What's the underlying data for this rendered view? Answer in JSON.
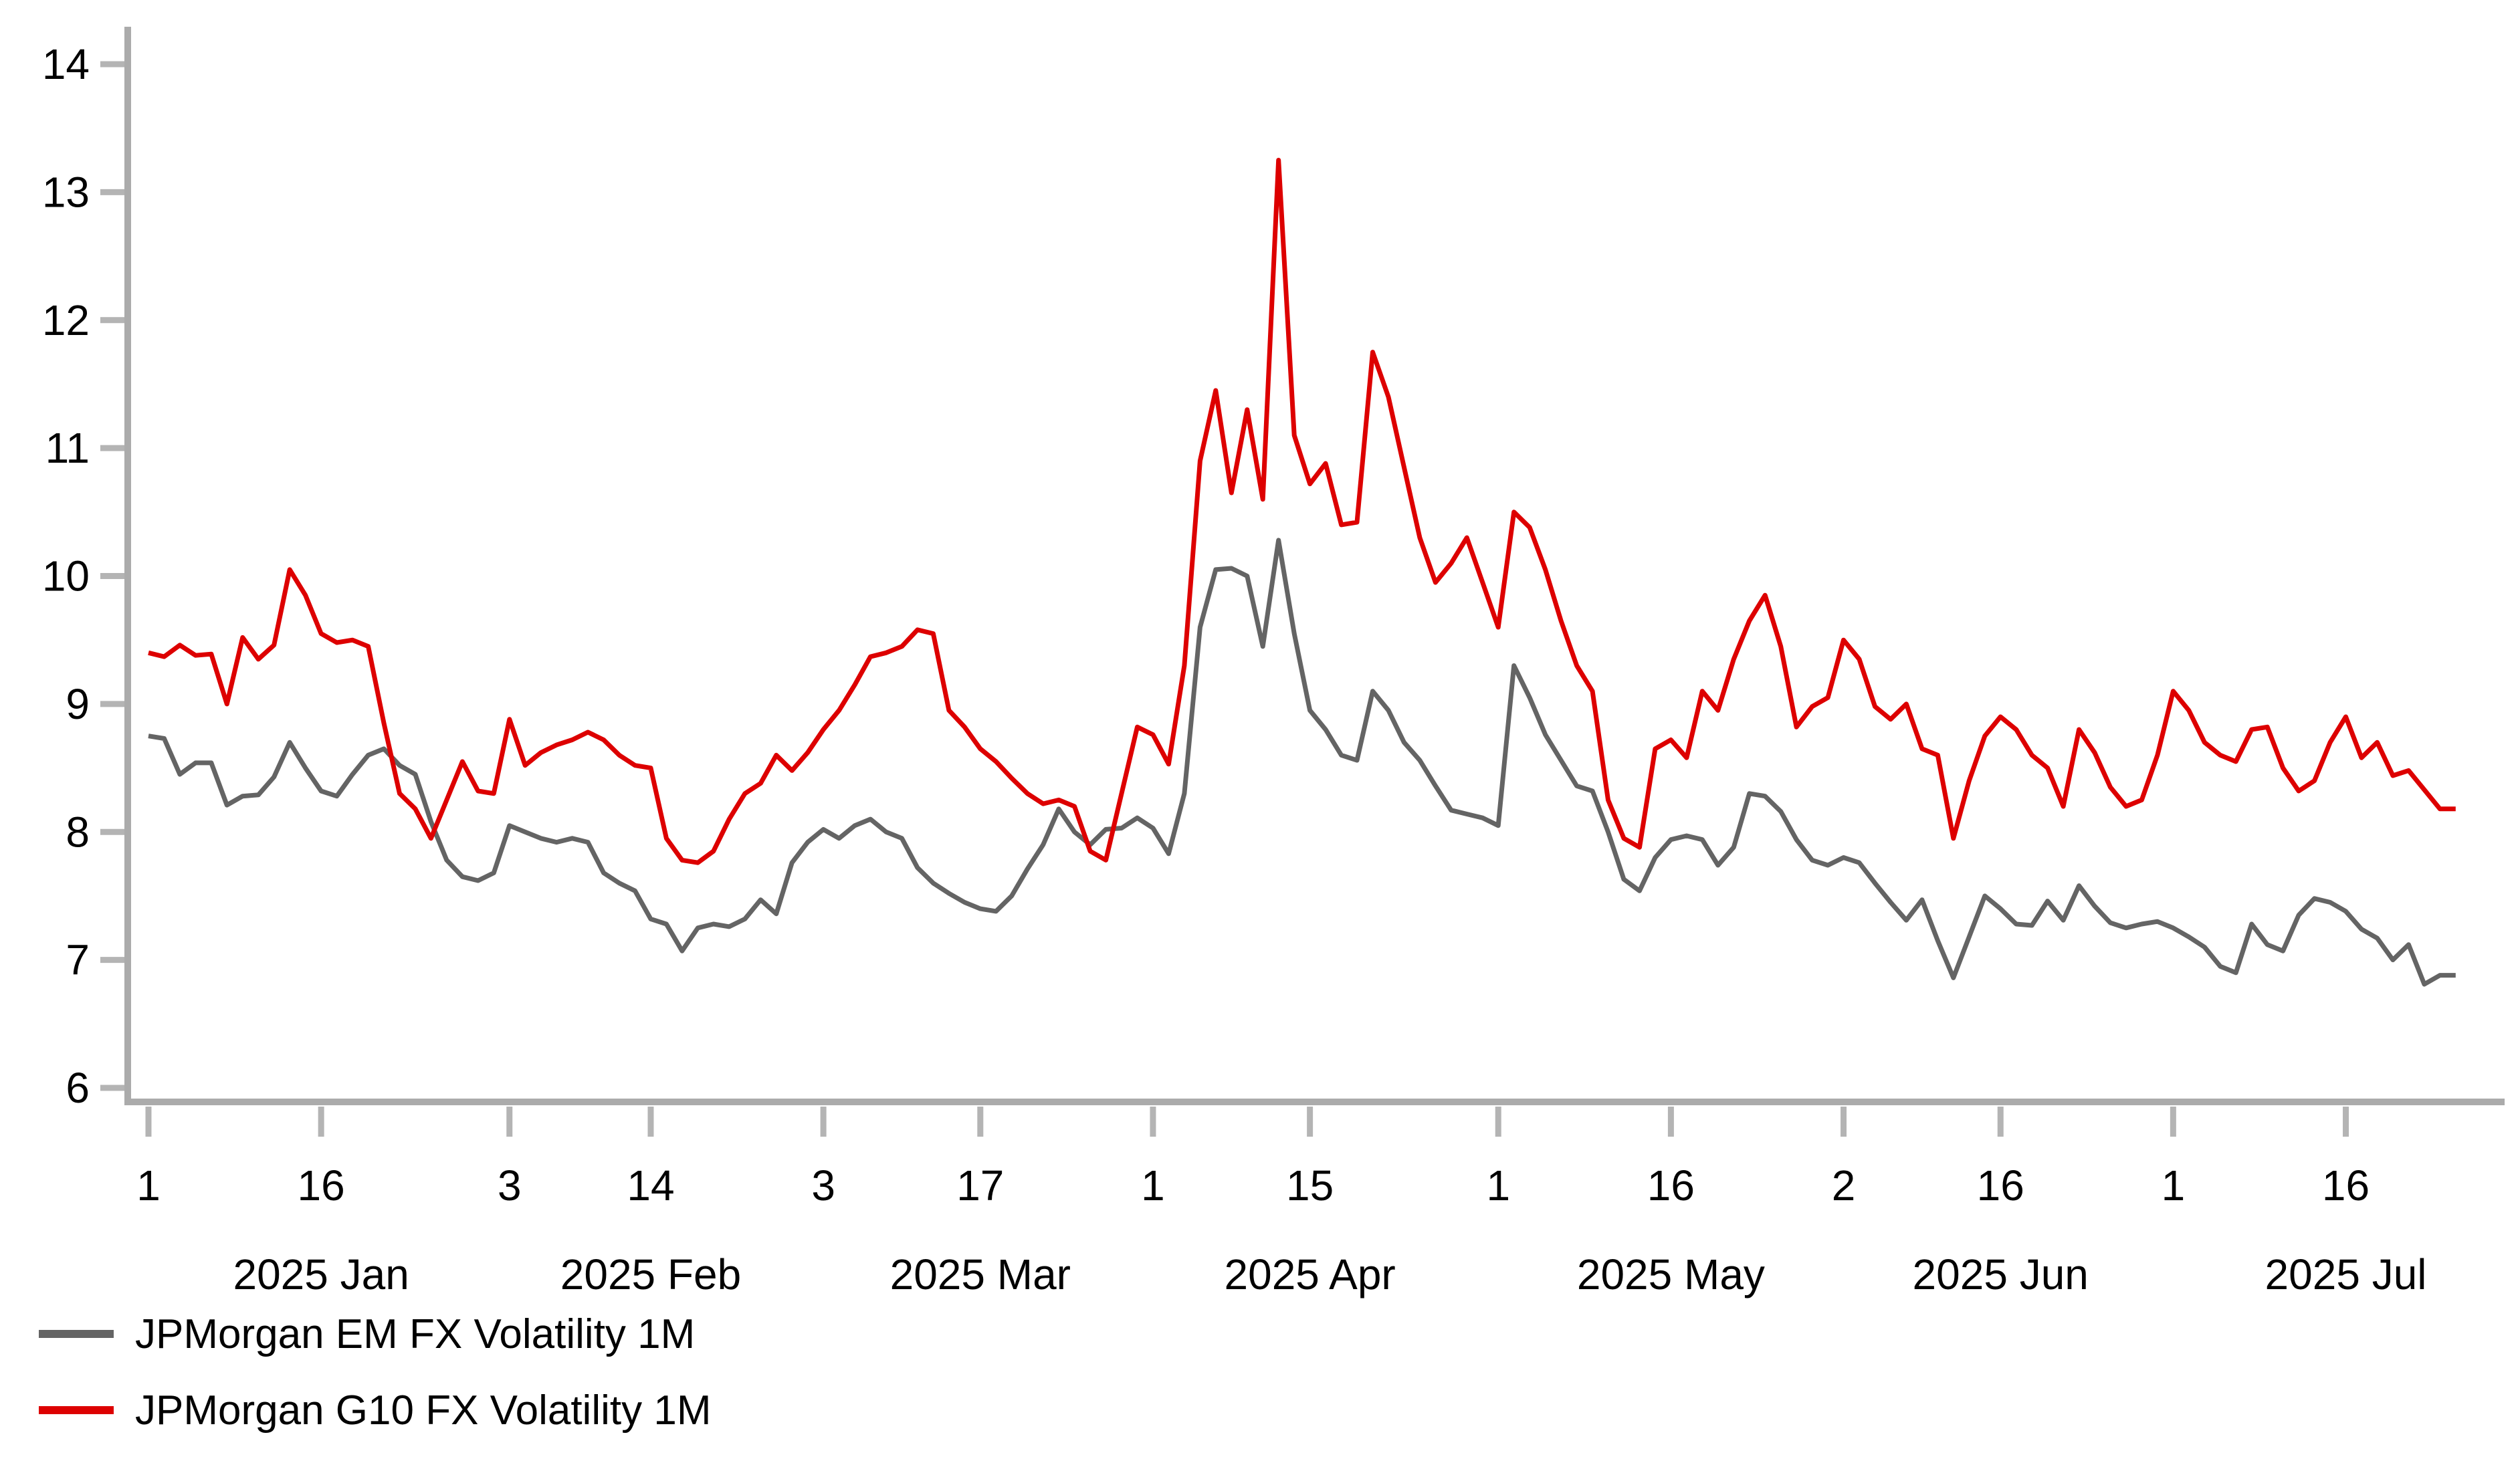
{
  "chart_data": {
    "type": "line",
    "title": "",
    "xlabel": "",
    "ylabel": "",
    "grid": false,
    "legend_position": "bottom-left",
    "y_axis": {
      "min": 6,
      "max": 14,
      "ticks": [
        14,
        13,
        12,
        11,
        10,
        9,
        8,
        7,
        6
      ]
    },
    "x_axis": {
      "unit": "business days 2025",
      "day_ticks": [
        {
          "index": 0,
          "label": "1"
        },
        {
          "index": 11,
          "label": "16"
        },
        {
          "index": 23,
          "label": "3"
        },
        {
          "index": 32,
          "label": "14"
        },
        {
          "index": 43,
          "label": "3"
        },
        {
          "index": 53,
          "label": "17"
        },
        {
          "index": 64,
          "label": "1"
        },
        {
          "index": 74,
          "label": "15"
        },
        {
          "index": 86,
          "label": "1"
        },
        {
          "index": 97,
          "label": "16"
        },
        {
          "index": 108,
          "label": "2"
        },
        {
          "index": 118,
          "label": "16"
        },
        {
          "index": 129,
          "label": "1"
        },
        {
          "index": 140,
          "label": "16"
        }
      ],
      "month_labels": [
        {
          "index": 11,
          "label": "2025 Jan"
        },
        {
          "index": 32,
          "label": "2025 Feb"
        },
        {
          "index": 53,
          "label": "2025 Mar"
        },
        {
          "index": 74,
          "label": "2025 Apr"
        },
        {
          "index": 97,
          "label": "2025 May"
        },
        {
          "index": 118,
          "label": "2025 Jun"
        },
        {
          "index": 140,
          "label": "2025 Jul"
        }
      ]
    },
    "x_dates": [
      "Jan 1",
      "Jan 2",
      "Jan 3",
      "Jan 6",
      "Jan 7",
      "Jan 8",
      "Jan 9",
      "Jan 10",
      "Jan 13",
      "Jan 14",
      "Jan 15",
      "Jan 16",
      "Jan 17",
      "Jan 20",
      "Jan 21",
      "Jan 22",
      "Jan 23",
      "Jan 24",
      "Jan 27",
      "Jan 28",
      "Jan 29",
      "Jan 30",
      "Jan 31",
      "Feb 3",
      "Feb 4",
      "Feb 5",
      "Feb 6",
      "Feb 7",
      "Feb 10",
      "Feb 11",
      "Feb 12",
      "Feb 13",
      "Feb 14",
      "Feb 17",
      "Feb 18",
      "Feb 19",
      "Feb 20",
      "Feb 21",
      "Feb 24",
      "Feb 25",
      "Feb 26",
      "Feb 27",
      "Feb 28",
      "Mar 3",
      "Mar 4",
      "Mar 5",
      "Mar 6",
      "Mar 7",
      "Mar 10",
      "Mar 11",
      "Mar 12",
      "Mar 13",
      "Mar 14",
      "Mar 17",
      "Mar 18",
      "Mar 19",
      "Mar 20",
      "Mar 21",
      "Mar 24",
      "Mar 25",
      "Mar 26",
      "Mar 27",
      "Mar 28",
      "Mar 31",
      "Apr 1",
      "Apr 2",
      "Apr 3",
      "Apr 4",
      "Apr 7",
      "Apr 8",
      "Apr 9",
      "Apr 10",
      "Apr 11",
      "Apr 14",
      "Apr 15",
      "Apr 16",
      "Apr 17",
      "Apr 18",
      "Apr 21",
      "Apr 22",
      "Apr 23",
      "Apr 24",
      "Apr 25",
      "Apr 28",
      "Apr 29",
      "Apr 30",
      "May 1",
      "May 2",
      "May 5",
      "May 6",
      "May 7",
      "May 8",
      "May 9",
      "May 12",
      "May 13",
      "May 14",
      "May 15",
      "May 16",
      "May 19",
      "May 20",
      "May 21",
      "May 22",
      "May 23",
      "May 26",
      "May 27",
      "May 28",
      "May 29",
      "May 30",
      "Jun 2",
      "Jun 3",
      "Jun 4",
      "Jun 5",
      "Jun 6",
      "Jun 9",
      "Jun 10",
      "Jun 11",
      "Jun 12",
      "Jun 13",
      "Jun 16",
      "Jun 17",
      "Jun 18",
      "Jun 19",
      "Jun 20",
      "Jun 23",
      "Jun 24",
      "Jun 25",
      "Jun 26",
      "Jun 27",
      "Jun 30",
      "Jul 1",
      "Jul 2",
      "Jul 3",
      "Jul 4",
      "Jul 7",
      "Jul 8",
      "Jul 9",
      "Jul 10",
      "Jul 11",
      "Jul 14",
      "Jul 15",
      "Jul 16",
      "Jul 17",
      "Jul 18",
      "Jul 21",
      "Jul 22",
      "Jul 23",
      "Jul 24",
      "Jul 25"
    ],
    "series": [
      {
        "name": "JPMorgan EM FX Volatility 1M",
        "color": "#646464",
        "values": [
          8.75,
          8.73,
          8.45,
          8.54,
          8.54,
          8.21,
          8.28,
          8.29,
          8.43,
          8.7,
          8.5,
          8.32,
          8.28,
          8.45,
          8.6,
          8.65,
          8.52,
          8.45,
          8.08,
          7.78,
          7.65,
          7.62,
          7.68,
          8.05,
          8.0,
          7.95,
          7.92,
          7.95,
          7.92,
          7.68,
          7.6,
          7.54,
          7.32,
          7.28,
          7.07,
          7.25,
          7.28,
          7.26,
          7.32,
          7.47,
          7.36,
          7.76,
          7.92,
          8.02,
          7.95,
          8.05,
          8.1,
          8.0,
          7.95,
          7.72,
          7.6,
          7.52,
          7.45,
          7.4,
          7.38,
          7.5,
          7.71,
          7.9,
          8.18,
          8.0,
          7.9,
          8.02,
          8.03,
          8.11,
          8.03,
          7.83,
          8.3,
          9.6,
          10.05,
          10.06,
          10.0,
          9.45,
          10.28,
          9.55,
          8.95,
          8.8,
          8.6,
          8.56,
          9.1,
          8.95,
          8.7,
          8.56,
          8.36,
          8.17,
          8.14,
          8.11,
          8.05,
          9.3,
          9.05,
          8.76,
          8.56,
          8.36,
          8.32,
          8.0,
          7.63,
          7.54,
          7.8,
          7.94,
          7.97,
          7.94,
          7.74,
          7.88,
          8.3,
          8.28,
          8.16,
          7.94,
          7.78,
          7.74,
          7.8,
          7.76,
          7.6,
          7.45,
          7.31,
          7.47,
          7.15,
          6.86,
          7.18,
          7.5,
          7.4,
          7.28,
          7.27,
          7.46,
          7.31,
          7.58,
          7.42,
          7.29,
          7.25,
          7.28,
          7.3,
          7.25,
          7.18,
          7.1,
          6.95,
          6.9,
          7.28,
          7.12,
          7.07,
          7.35,
          7.48,
          7.45,
          7.38,
          7.24,
          7.17,
          7.0,
          7.12,
          6.81,
          6.88,
          6.88
        ]
      },
      {
        "name": "JPMorgan G10 FX Volatility 1M",
        "color": "#dd0000",
        "values": [
          9.4,
          9.37,
          9.46,
          9.38,
          9.39,
          9.0,
          9.52,
          9.35,
          9.46,
          10.05,
          9.85,
          9.55,
          9.48,
          9.5,
          9.45,
          8.85,
          8.3,
          8.18,
          7.95,
          8.25,
          8.55,
          8.32,
          8.3,
          8.88,
          8.52,
          8.62,
          8.68,
          8.72,
          8.78,
          8.72,
          8.6,
          8.52,
          8.5,
          7.95,
          7.78,
          7.76,
          7.85,
          8.1,
          8.3,
          8.38,
          8.6,
          8.48,
          8.62,
          8.8,
          8.95,
          9.15,
          9.37,
          9.4,
          9.45,
          9.58,
          9.55,
          8.95,
          8.82,
          8.65,
          8.55,
          8.42,
          8.3,
          8.22,
          8.25,
          8.2,
          7.85,
          7.78,
          8.3,
          8.82,
          8.76,
          8.53,
          9.3,
          10.9,
          11.45,
          10.65,
          11.3,
          10.6,
          13.25,
          11.1,
          10.72,
          10.88,
          10.4,
          10.42,
          11.75,
          11.4,
          10.85,
          10.3,
          9.95,
          10.1,
          10.3,
          9.95,
          9.6,
          10.5,
          10.38,
          10.05,
          9.65,
          9.3,
          9.1,
          8.25,
          7.95,
          7.88,
          8.65,
          8.72,
          8.58,
          9.1,
          8.95,
          9.35,
          9.65,
          9.85,
          9.45,
          8.82,
          8.98,
          9.05,
          9.5,
          9.35,
          8.98,
          8.88,
          9.0,
          8.65,
          8.6,
          7.95,
          8.4,
          8.75,
          8.9,
          8.8,
          8.6,
          8.5,
          8.2,
          8.8,
          8.62,
          8.35,
          8.2,
          8.25,
          8.6,
          9.1,
          8.95,
          8.7,
          8.6,
          8.55,
          8.8,
          8.82,
          8.5,
          8.32,
          8.4,
          8.7,
          8.9,
          8.58,
          8.7,
          8.44,
          8.48,
          8.33,
          8.18,
          8.18
        ]
      }
    ],
    "axis_color": "#ababab",
    "tick_color": "#b4b4b4"
  },
  "legend": {
    "items": [
      {
        "label": "JPMorgan EM FX Volatility 1M",
        "color": "#646464"
      },
      {
        "label": "JPMorgan G10 FX Volatility 1M",
        "color": "#dd0000"
      }
    ]
  }
}
